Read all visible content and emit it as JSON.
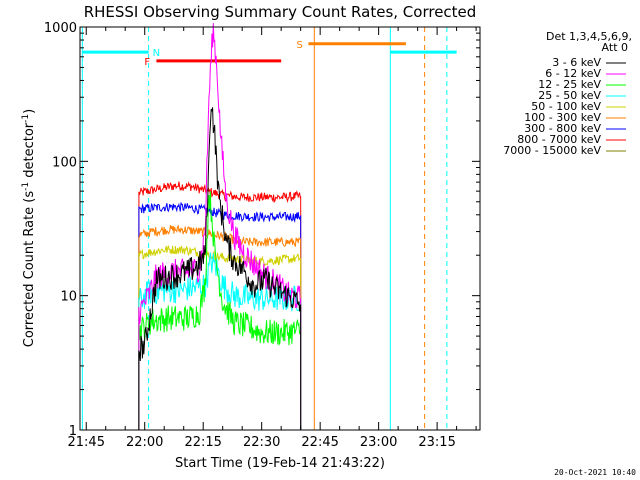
{
  "chart_data": {
    "type": "line",
    "title": "RHESSI Observing Summary Count Rates, Corrected",
    "xlabel": "Start Time (19-Feb-14 21:43:22)",
    "ylabel": "Corrected Count Rate (s⁻¹ detector⁻¹)",
    "ylabel_main": "Corrected Count Rate (s",
    "ylabel_sup1": "-1",
    "ylabel_mid": " detector",
    "ylabel_sup2": "-1",
    "ylabel_end": ")",
    "x_tick_labels": [
      "21:45",
      "22:00",
      "22:15",
      "22:30",
      "22:45",
      "23:00",
      "23:15"
    ],
    "x_tick_minutes": [
      105,
      120,
      135,
      150,
      165,
      180,
      195
    ],
    "xlim_minutes": [
      103.4,
      206
    ],
    "y_scale": "log",
    "ylim": [
      1,
      1000
    ],
    "y_tick_labels": [
      "1",
      "10",
      "100",
      "1000"
    ],
    "y_tick_values": [
      1,
      10,
      100,
      1000
    ],
    "legend_header": [
      "Det 1,3,4,5,6,9,",
      "Att 0"
    ],
    "legend_position": "right",
    "series": [
      {
        "name": "3 - 6 keV",
        "color": "#000000",
        "points": [
          [
            118.5,
            4
          ],
          [
            120,
            4.3
          ],
          [
            123,
            13
          ],
          [
            127,
            14
          ],
          [
            131,
            15
          ],
          [
            134,
            17
          ],
          [
            135.5,
            20
          ],
          [
            136.5,
            100
          ],
          [
            137,
            300
          ],
          [
            138,
            150
          ],
          [
            139,
            55
          ],
          [
            141,
            25
          ],
          [
            143,
            18
          ],
          [
            145,
            16
          ],
          [
            148,
            12
          ],
          [
            151,
            13
          ],
          [
            154,
            11
          ],
          [
            158,
            9.5
          ],
          [
            160,
            8.5
          ]
        ]
      },
      {
        "name": "6 - 12 keV",
        "color": "#ff00ff",
        "points": [
          [
            118.5,
            7.5
          ],
          [
            121,
            10
          ],
          [
            123,
            14
          ],
          [
            127,
            15
          ],
          [
            131,
            15
          ],
          [
            134,
            16
          ],
          [
            135.5,
            30
          ],
          [
            136.5,
            300
          ],
          [
            137.5,
            1000
          ],
          [
            138.5,
            500
          ],
          [
            139.5,
            150
          ],
          [
            141,
            50
          ],
          [
            143,
            28
          ],
          [
            145,
            22
          ],
          [
            148,
            17
          ],
          [
            151,
            14
          ],
          [
            154,
            12
          ],
          [
            157,
            10
          ],
          [
            160,
            9.5
          ]
        ]
      },
      {
        "name": "12 - 25 keV",
        "color": "#00ff00",
        "points": [
          [
            118.5,
            5.5
          ],
          [
            122,
            6.5
          ],
          [
            126,
            6.8
          ],
          [
            131,
            6.8
          ],
          [
            134,
            7.5
          ],
          [
            135.5,
            12
          ],
          [
            136.5,
            60
          ],
          [
            137.2,
            40
          ],
          [
            138,
            20
          ],
          [
            140,
            9
          ],
          [
            143,
            6.3
          ],
          [
            147,
            5.8
          ],
          [
            150,
            5.3
          ],
          [
            155,
            5.3
          ],
          [
            160,
            5.5
          ]
        ]
      },
      {
        "name": "25 - 50 keV",
        "color": "#00ffff",
        "points": [
          [
            118.5,
            9
          ],
          [
            121,
            10.5
          ],
          [
            125,
            11
          ],
          [
            129,
            11
          ],
          [
            133,
            11.5
          ],
          [
            135.5,
            12
          ],
          [
            137,
            18
          ],
          [
            138.5,
            16
          ],
          [
            140,
            12
          ],
          [
            143,
            10
          ],
          [
            147,
            9.5
          ],
          [
            151,
            9.5
          ],
          [
            155,
            9.5
          ],
          [
            160,
            9.5
          ]
        ]
      },
      {
        "name": "50 - 100 keV",
        "color": "#d0d000",
        "points": [
          [
            118.5,
            20
          ],
          [
            121,
            21
          ],
          [
            125,
            22
          ],
          [
            130,
            22
          ],
          [
            134,
            21
          ],
          [
            137,
            20
          ],
          [
            141,
            19
          ],
          [
            145,
            18.5
          ],
          [
            150,
            18
          ],
          [
            155,
            18.5
          ],
          [
            160,
            19
          ]
        ]
      },
      {
        "name": "100 - 300 keV",
        "color": "#ff8000",
        "points": [
          [
            118.5,
            28
          ],
          [
            122,
            30
          ],
          [
            126,
            31
          ],
          [
            130,
            31
          ],
          [
            134,
            30
          ],
          [
            137,
            29
          ],
          [
            141,
            27
          ],
          [
            145,
            25
          ],
          [
            150,
            25
          ],
          [
            155,
            25
          ],
          [
            160,
            25
          ]
        ]
      },
      {
        "name": "300 - 800 keV",
        "color": "#0000ff",
        "points": [
          [
            118.5,
            44
          ],
          [
            122,
            45
          ],
          [
            127,
            46
          ],
          [
            132,
            45
          ],
          [
            136,
            43
          ],
          [
            140,
            40
          ],
          [
            145,
            39
          ],
          [
            150,
            38.5
          ],
          [
            155,
            38.5
          ],
          [
            160,
            39
          ]
        ]
      },
      {
        "name": "800 - 7000 keV",
        "color": "#ff0000",
        "points": [
          [
            118.5,
            58
          ],
          [
            123,
            62
          ],
          [
            128,
            66
          ],
          [
            132,
            65
          ],
          [
            136,
            60
          ],
          [
            140,
            56
          ],
          [
            145,
            54
          ],
          [
            150,
            54
          ],
          [
            155,
            54
          ],
          [
            160,
            55
          ]
        ]
      },
      {
        "name": "7000 - 15000 keV",
        "color": "#808000",
        "points": []
      }
    ],
    "annotations": [
      {
        "label": "N",
        "color": "#00ffff",
        "x_start": 104,
        "x_end": 121,
        "y": 650
      },
      {
        "label": "F",
        "color": "#ff0000",
        "x_start": 123,
        "x_end": 155,
        "y": 560
      },
      {
        "label": "S",
        "color": "#ff8000",
        "x_start": 162,
        "x_end": 187,
        "y": 750
      },
      {
        "label": "",
        "color": "#00ffff",
        "x_start": 183,
        "x_end": 200,
        "y": 650
      }
    ],
    "vertical_markers": [
      {
        "x": 104,
        "color": "#00ffff",
        "style": "solid"
      },
      {
        "x": 121,
        "color": "#00ffff",
        "style": "dashed"
      },
      {
        "x": 163.5,
        "color": "#ff8000",
        "style": "solid"
      },
      {
        "x": 183,
        "color": "#00ffff",
        "style": "solid"
      },
      {
        "x": 191.8,
        "color": "#ff8000",
        "style": "dashed"
      },
      {
        "x": 197.5,
        "color": "#00ffff",
        "style": "dashed"
      }
    ],
    "footer_date": "20-Oct-2021 10:40"
  }
}
